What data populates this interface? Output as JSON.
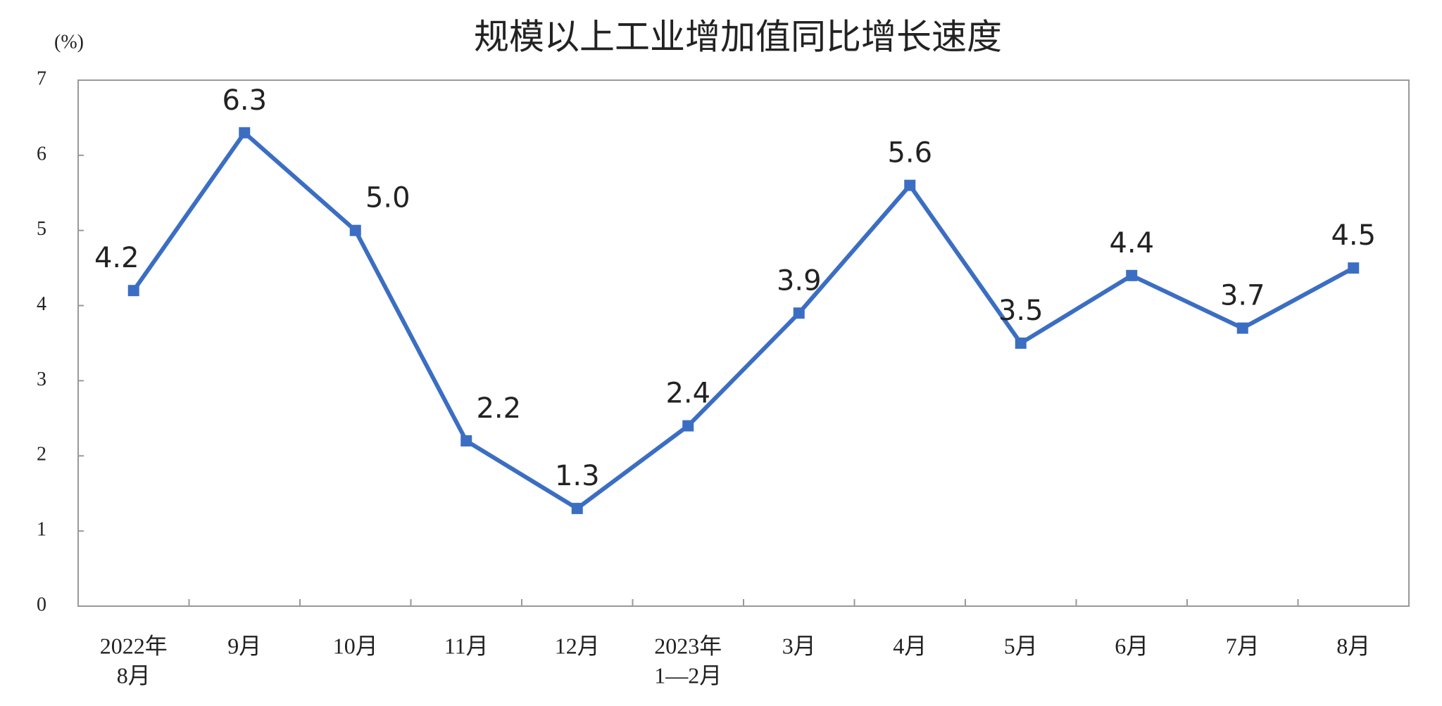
{
  "chart_data": {
    "type": "line",
    "title": "规模以上工业增加值同比增长速度",
    "y_unit": "(%)",
    "categories": [
      [
        "2022年",
        "8月"
      ],
      "9月",
      "10月",
      "11月",
      "12月",
      [
        "2023年",
        "1—2月"
      ],
      "3月",
      "4月",
      "5月",
      "6月",
      "7月",
      "8月"
    ],
    "values": [
      4.2,
      6.3,
      5.0,
      2.2,
      1.3,
      2.4,
      3.9,
      5.6,
      3.5,
      4.4,
      3.7,
      4.5
    ],
    "value_labels": [
      "4.2",
      "6.3",
      "5.0",
      "2.2",
      "1.3",
      "2.4",
      "3.9",
      "5.6",
      "3.5",
      "4.4",
      "3.7",
      "4.5"
    ],
    "color": "#3b6ec3",
    "ylim": [
      0,
      7
    ],
    "yticks": [
      0,
      1,
      2,
      3,
      4,
      5,
      6,
      7
    ]
  }
}
